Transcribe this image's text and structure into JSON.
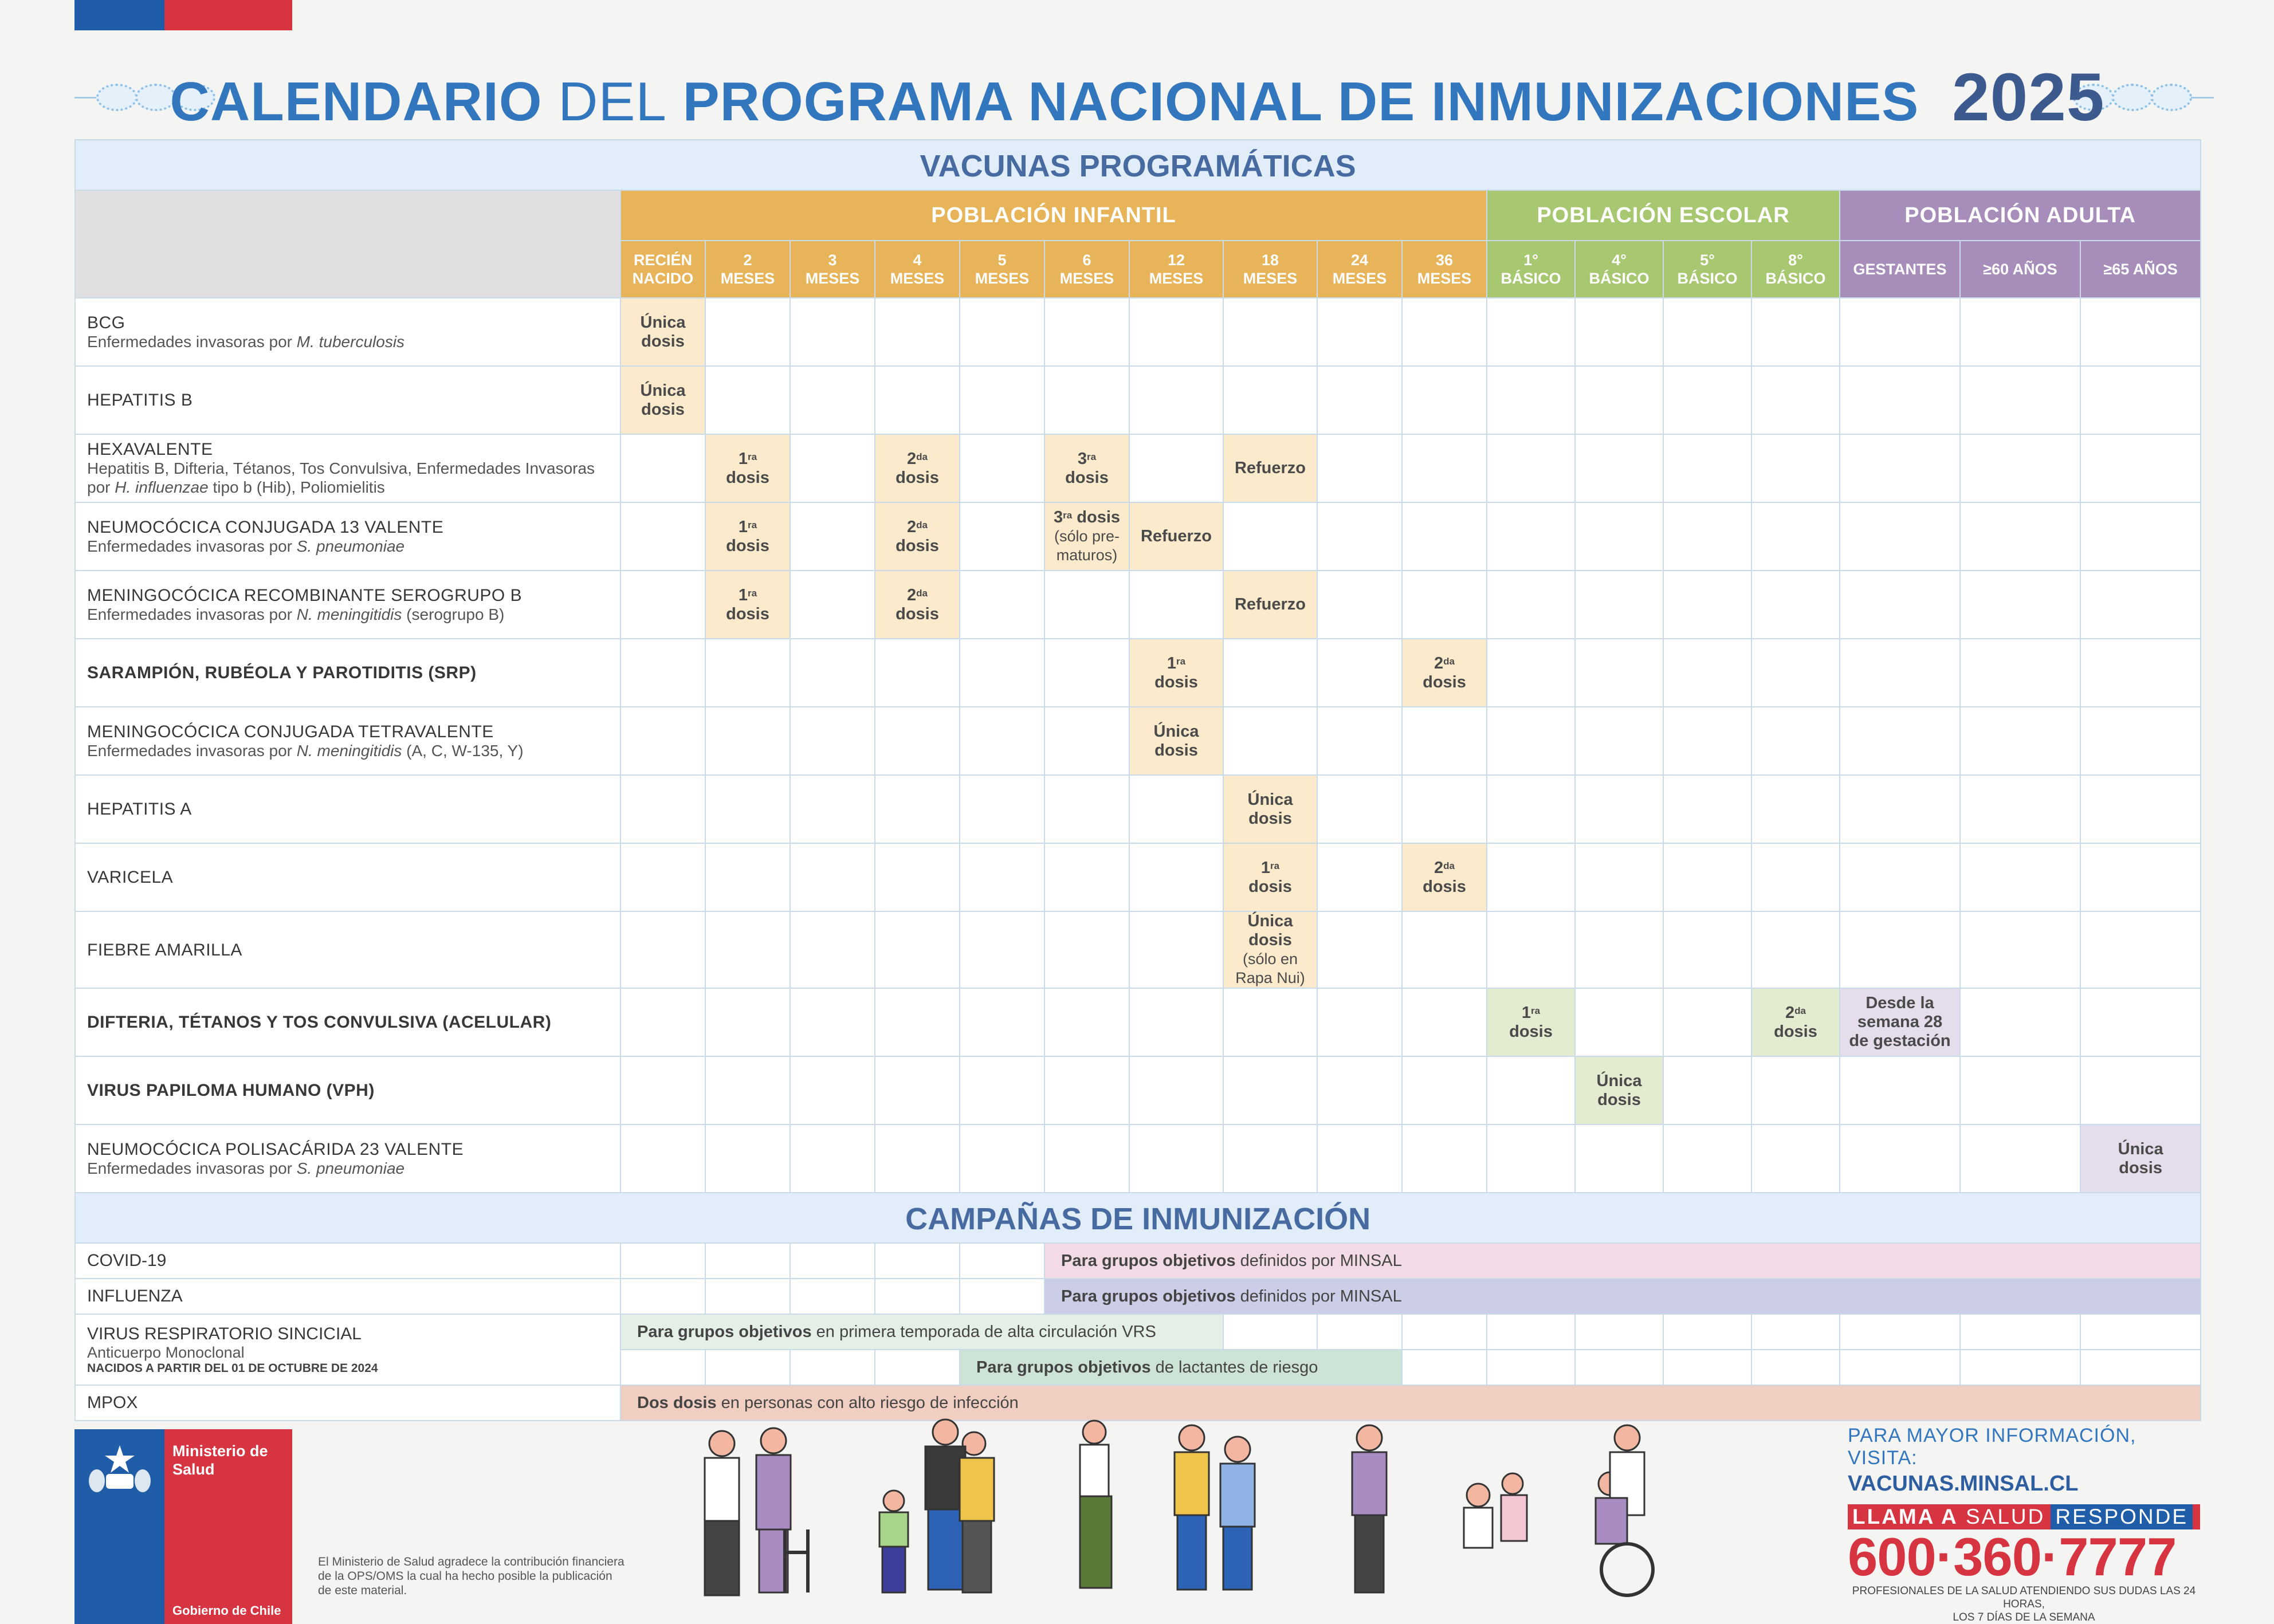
{
  "header": {
    "title_calendario": "CALENDARIO",
    "title_del": "DEL",
    "title_programa": "PROGRAMA NACIONAL DE INMUNIZACIONES",
    "year": "2025"
  },
  "sections": {
    "programaticas": "VACUNAS PROGRAMÁTICAS",
    "campanas": "CAMPAÑAS DE INMUNIZACIÓN"
  },
  "groups": {
    "infantil": "POBLACIÓN INFANTIL",
    "escolar": "POBLACIÓN ESCOLAR",
    "adulta": "POBLACIÓN ADULTA"
  },
  "columns": [
    [
      "RECIÉN",
      "NACIDO"
    ],
    [
      "2",
      "MESES"
    ],
    [
      "3",
      "MESES"
    ],
    [
      "4",
      "MESES"
    ],
    [
      "5",
      "MESES"
    ],
    [
      "6",
      "MESES"
    ],
    [
      "12",
      "MESES"
    ],
    [
      "18",
      "MESES"
    ],
    [
      "24",
      "MESES"
    ],
    [
      "36",
      "MESES"
    ],
    [
      "1°",
      "BÁSICO"
    ],
    [
      "4°",
      "BÁSICO"
    ],
    [
      "5°",
      "BÁSICO"
    ],
    [
      "8°",
      "BÁSICO"
    ],
    [
      "GESTANTES"
    ],
    [
      "≥60 AÑOS"
    ],
    [
      "≥65 AÑOS"
    ]
  ],
  "vaccines": [
    {
      "name": "BCG",
      "desc": "Enfermedades invasoras por <i>M. tuberculosis</i>",
      "cells": {
        "0": "Única<br>dosis"
      }
    },
    {
      "name": "HEPATITIS B",
      "desc": "",
      "cells": {
        "0": "Única<br>dosis"
      }
    },
    {
      "name": "HEXAVALENTE",
      "desc": "Hepatitis B, Difteria, Tétanos, Tos Convulsiva, Enfermedades Invasoras por <i>H. influenzae</i> tipo b (Hib), Poliomielitis",
      "cells": {
        "1": "1<sup>ra</sup><br>dosis",
        "3": "2<sup>da</sup><br>dosis",
        "5": "3<sup>ra</sup><br>dosis",
        "7": "Refuerzo"
      }
    },
    {
      "name": "NEUMOCÓCICA CONJUGADA 13 VALENTE",
      "desc": "Enfermedades invasoras por <i>S. pneumoniae</i>",
      "cells": {
        "1": "1<sup>ra</sup><br>dosis",
        "3": "2<sup>da</sup><br>dosis",
        "5": "3<sup>ra</sup> dosis<br><span class=\"sm\">(sólo pre-<br>maturos)</span>",
        "6": "Refuerzo"
      }
    },
    {
      "name": "MENINGOCÓCICA RECOMBINANTE SEROGRUPO B",
      "desc": "Enfermedades invasoras por <i>N. meningitidis</i> (serogrupo B)",
      "cells": {
        "1": "1<sup>ra</sup><br>dosis",
        "3": "2<sup>da</sup><br>dosis",
        "7": "Refuerzo"
      }
    },
    {
      "name": "<b>SARAMPIÓN, RUBÉOLA Y PAROTIDITIS (SRP)</b>",
      "desc": "",
      "cells": {
        "6": "1<sup>ra</sup><br>dosis",
        "9": "2<sup>da</sup><br>dosis"
      }
    },
    {
      "name": "MENINGOCÓCICA CONJUGADA TETRAVALENTE",
      "desc": "Enfermedades invasoras por <i>N. meningitidis</i> (A, C, W-135, Y)",
      "cells": {
        "6": "Única<br>dosis"
      }
    },
    {
      "name": "HEPATITIS A",
      "desc": "",
      "cells": {
        "7": "Única<br>dosis"
      }
    },
    {
      "name": "VARICELA",
      "desc": "",
      "cells": {
        "7": "1<sup>ra</sup><br>dosis",
        "9": "2<sup>da</sup><br>dosis"
      }
    },
    {
      "name": "FIEBRE AMARILLA",
      "desc": "",
      "cells": {
        "7": "Única dosis<br><span class=\"sm\">(sólo en<br>Rapa Nui)</span>"
      }
    },
    {
      "name": "<b>DIFTERIA, TÉTANOS Y TOS CONVULSIVA (ACELULAR)</b>",
      "desc": "",
      "cells": {
        "10": "1<sup>ra</sup><br>dosis",
        "13": "2<sup>da</sup><br>dosis",
        "14": "Desde la<br>semana 28<br>de gestación"
      }
    },
    {
      "name": "<b>VIRUS PAPILOMA HUMANO (VPH)</b>",
      "desc": "",
      "cells": {
        "11": "Única<br>dosis"
      }
    },
    {
      "name": "NEUMOCÓCICA POLISACÁRIDA 23 VALENTE",
      "desc": "Enfermedades invasoras por <i>S. pneumoniae</i>",
      "cells": {
        "16": "Única<br>dosis"
      }
    }
  ],
  "campaigns": {
    "covid": {
      "name": "COVID-19",
      "bold": "Para grupos objetivos",
      "rest": " definidos por MINSAL"
    },
    "influenza": {
      "name": "INFLUENZA",
      "bold": "Para grupos objetivos",
      "rest": " definidos por MINSAL"
    },
    "vrs": {
      "name": "VIRUS RESPIRATORIO SINCICIAL",
      "sub": "Anticuerpo Monoclonal",
      "sub2": "NACIDOS A PARTIR DEL 01 DE OCTUBRE DE 2024",
      "bar1_bold": "Para grupos objetivos",
      "bar1_rest": " en primera temporada de alta circulación VRS",
      "bar2_bold": "Para grupos objetivos",
      "bar2_rest": " de lactantes de riesgo"
    },
    "mpox": {
      "name": "MPOX",
      "bold": "Dos dosis",
      "rest": " en personas con alto riesgo de infección"
    }
  },
  "footer": {
    "ministry": "Ministerio de Salud",
    "government": "Gobierno de Chile",
    "note": "El Ministerio de Salud agradece la contribución financiera de la OPS/OMS la cual ha hecho posible la publicación de este material.",
    "info_label": "PARA MAYOR INFORMACIÓN, VISITA:",
    "url": "VACUNAS.MINSAL.CL",
    "hotline_a": "LLAMA A",
    "hotline_b": "SALUD",
    "hotline_c": "RESPONDE",
    "phone": "600·360·7777",
    "phone_note_1": "PROFESIONALES DE LA SALUD ATENDIENDO SUS DUDAS LAS 24 HORAS,",
    "phone_note_2": "LOS 7 DÍAS DE LA SEMANA"
  },
  "colors": {
    "infantil": "#e7b45a",
    "escolar": "#a8c771",
    "adulta": "#a78eba",
    "title_blue": "#3276bd",
    "red": "#d63441"
  },
  "icons": [
    "fleuron-ornament-icon",
    "chile-coat-of-arms-icon"
  ]
}
